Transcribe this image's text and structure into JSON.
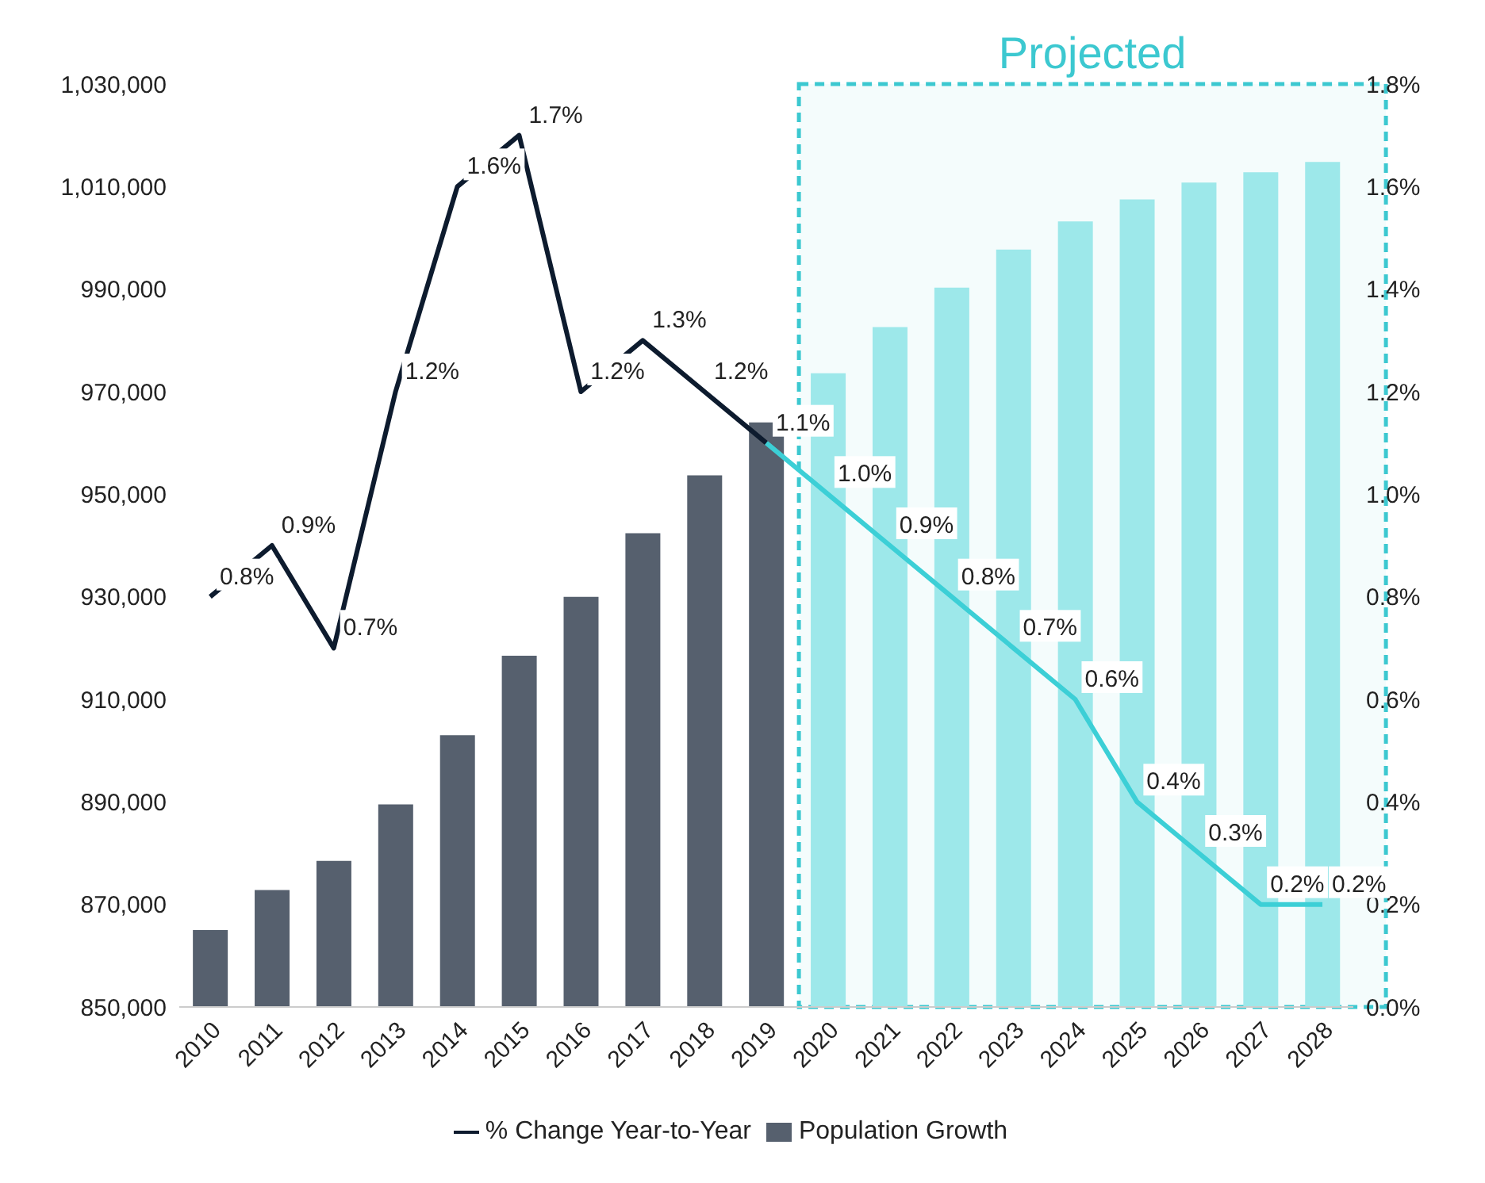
{
  "chart_data": {
    "type": "bar",
    "categories": [
      "2010",
      "2011",
      "2012",
      "2013",
      "2014",
      "2015",
      "2016",
      "2017",
      "2018",
      "2019",
      "2020",
      "2021",
      "2022",
      "2023",
      "2024",
      "2025",
      "2026",
      "2027",
      "2028"
    ],
    "series": [
      {
        "name": "Population Growth",
        "colors": [
          "#56606e",
          "#56606e",
          "#56606e",
          "#56606e",
          "#56606e",
          "#56606e",
          "#56606e",
          "#56606e",
          "#56606e",
          "#56606e",
          "#9de8ea",
          "#9de8ea",
          "#9de8ea",
          "#9de8ea",
          "#9de8ea",
          "#9de8ea",
          "#9de8ea",
          "#9de8ea",
          "#9de8ea"
        ],
        "values": [
          865000,
          872800,
          878500,
          889500,
          903000,
          918500,
          930000,
          942400,
          953700,
          964000,
          973600,
          982600,
          990300,
          997700,
          1003200,
          1007500,
          1010800,
          1012800,
          1014800
        ]
      },
      {
        "name": "% Change Year-to-Year",
        "type": "line",
        "axis": "y2",
        "color": "#0d1b2e",
        "values": [
          0.8,
          0.9,
          0.7,
          1.2,
          1.6,
          1.7,
          1.2,
          1.3,
          1.2,
          1.1,
          null,
          null,
          null,
          null,
          null,
          null,
          null,
          null,
          null
        ],
        "value_labels": [
          "0.8%",
          "0.9%",
          "0.7%",
          "1.2%",
          "1.6%",
          "1.7%",
          "1.2%",
          "1.3%",
          "1.2%",
          null,
          null,
          null,
          null,
          null,
          null,
          null,
          null,
          null,
          null
        ]
      },
      {
        "type": "line",
        "axis": "y2",
        "color": "#3ccfd6",
        "values": [
          null,
          null,
          null,
          null,
          null,
          null,
          null,
          null,
          null,
          1.1,
          1.0,
          0.9,
          0.8,
          0.7,
          0.6,
          0.4,
          0.3,
          0.2,
          0.2
        ],
        "value_labels": [
          null,
          null,
          null,
          null,
          null,
          null,
          null,
          null,
          null,
          "1.1%",
          "1.0%",
          "0.9%",
          "0.8%",
          "0.7%",
          "0.6%",
          "0.4%",
          "0.3%",
          "0.2%",
          "0.2%"
        ]
      }
    ],
    "ylim": [
      850000,
      1030000
    ],
    "yticks": [
      {
        "value": 850000,
        "label": "850,000"
      },
      {
        "value": 870000,
        "label": "870,000"
      },
      {
        "value": 890000,
        "label": "890,000"
      },
      {
        "value": 910000,
        "label": "910,000"
      },
      {
        "value": 930000,
        "label": "930,000"
      },
      {
        "value": 950000,
        "label": "950,000"
      },
      {
        "value": 970000,
        "label": "970,000"
      },
      {
        "value": 990000,
        "label": "990,000"
      },
      {
        "value": 1010000,
        "label": "1,010,000"
      },
      {
        "value": 1030000,
        "label": "1,030,000"
      }
    ],
    "y2lim": [
      0,
      1.8
    ],
    "y2ticks": [
      {
        "value": 0,
        "label": "0.0%"
      },
      {
        "value": 0.2,
        "label": "0.2%"
      },
      {
        "value": 0.4,
        "label": "0.4%"
      },
      {
        "value": 0.6,
        "label": "0.6%"
      },
      {
        "value": 0.8,
        "label": "0.8%"
      },
      {
        "value": 1.0,
        "label": "1.0%"
      },
      {
        "value": 1.2,
        "label": "1.2%"
      },
      {
        "value": 1.4,
        "label": "1.4%"
      },
      {
        "value": 1.6,
        "label": "1.6%"
      },
      {
        "value": 1.8,
        "label": "1.8%"
      }
    ],
    "bands": [
      {
        "axis": "x",
        "from": "2020",
        "to": "2028",
        "label": "Projected",
        "color": "#3cc8d0"
      }
    ],
    "grid": false,
    "legend": "bottom",
    "marker": "none",
    "line_style": "solid"
  }
}
